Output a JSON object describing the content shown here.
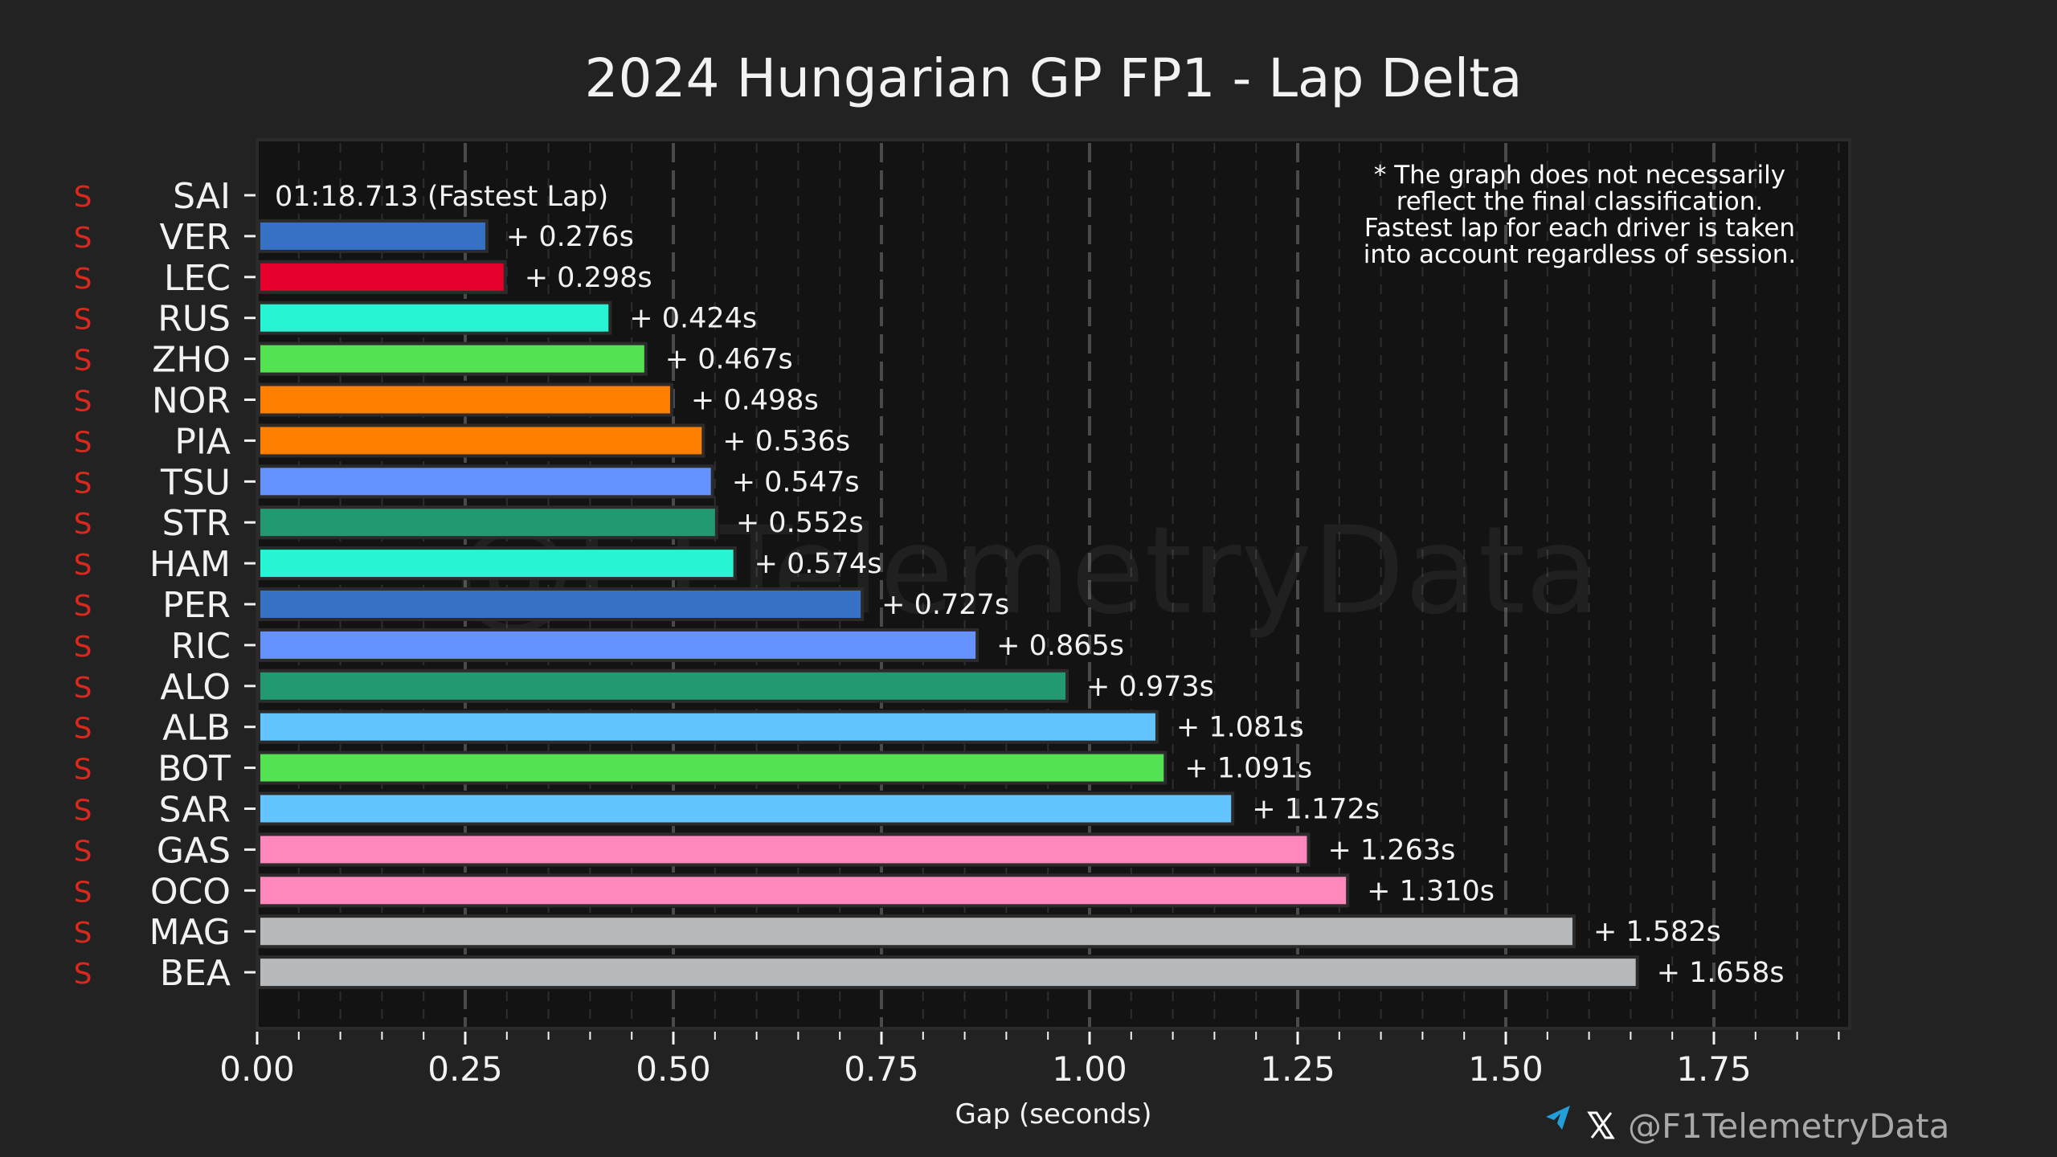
{
  "chart_data": {
    "type": "bar",
    "orientation": "horizontal",
    "title": "2024 Hungarian GP FP1 - Lap Delta",
    "xlabel": "Gap (seconds)",
    "ylabel": "",
    "xlim": [
      0,
      1.91
    ],
    "xticks": [
      0.0,
      0.25,
      0.5,
      0.75,
      1.0,
      1.25,
      1.5,
      1.75
    ],
    "xtick_labels": [
      "0.00",
      "0.25",
      "0.50",
      "0.75",
      "1.00",
      "1.25",
      "1.50",
      "1.75"
    ],
    "minor_tick_step": 0.05,
    "grid": "vertical dashed (major and minor)",
    "fastest": {
      "driver": "SAI",
      "tyre": "S",
      "label": "01:18.713 (Fastest Lap)"
    },
    "categories": [
      "SAI",
      "VER",
      "LEC",
      "RUS",
      "ZHO",
      "NOR",
      "PIA",
      "TSU",
      "STR",
      "HAM",
      "PER",
      "RIC",
      "ALO",
      "ALB",
      "BOT",
      "SAR",
      "GAS",
      "OCO",
      "MAG",
      "BEA"
    ],
    "tyres": [
      "S",
      "S",
      "S",
      "S",
      "S",
      "S",
      "S",
      "S",
      "S",
      "S",
      "S",
      "S",
      "S",
      "S",
      "S",
      "S",
      "S",
      "S",
      "S",
      "S"
    ],
    "values": [
      0.0,
      0.276,
      0.298,
      0.424,
      0.467,
      0.498,
      0.536,
      0.547,
      0.552,
      0.574,
      0.727,
      0.865,
      0.973,
      1.081,
      1.091,
      1.172,
      1.263,
      1.31,
      1.582,
      1.658
    ],
    "value_labels": [
      "",
      "+ 0.276s",
      "+ 0.298s",
      "+ 0.424s",
      "+ 0.467s",
      "+ 0.498s",
      "+ 0.536s",
      "+ 0.547s",
      "+ 0.552s",
      "+ 0.574s",
      "+ 0.727s",
      "+ 0.865s",
      "+ 0.973s",
      "+ 1.081s",
      "+ 1.091s",
      "+ 1.172s",
      "+ 1.263s",
      "+ 1.310s",
      "+ 1.582s",
      "+ 1.658s"
    ],
    "bar_colors": [
      "#E8002D",
      "#3671C6",
      "#E8002D",
      "#27F4D2",
      "#52E252",
      "#FF8000",
      "#FF8000",
      "#6692FF",
      "#229971",
      "#27F4D2",
      "#3671C6",
      "#6692FF",
      "#229971",
      "#64C4FF",
      "#52E252",
      "#64C4FF",
      "#FF87BC",
      "#FF87BC",
      "#B6BABD",
      "#B6BABD"
    ],
    "note_lines": [
      "* The graph does not necessarily",
      "reflect the final classification.",
      "Fastest lap for each driver is taken",
      "into account regardless of session."
    ],
    "legend": "none",
    "annotation_placement": "top-right"
  },
  "colors": {
    "background": "#222222",
    "plot_background": "#131313",
    "plot_border": "#2b2929",
    "tyre_soft": "#DA291C",
    "text": "#f2f2f2",
    "telegram": "#229ED9"
  },
  "watermark": "@F1TelemetryData",
  "footer": {
    "icons": [
      "telegram-icon",
      "x-icon"
    ],
    "handle": "@F1TelemetryData"
  }
}
